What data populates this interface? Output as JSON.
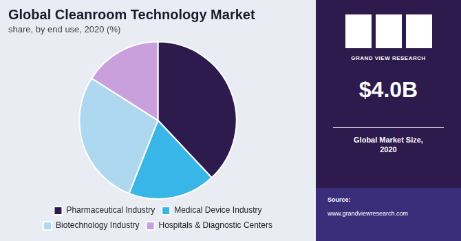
{
  "chart_data": {
    "type": "pie",
    "title": "Global Cleanroom Technology Market",
    "subtitle": "share, by end use, 2020 (%)",
    "categories": [
      "Pharmaceutical Industry",
      "Medical Device Industry",
      "Biotechnology Industry",
      "Hospitals & Diagnostic Centers"
    ],
    "values": [
      38,
      18,
      28,
      16
    ],
    "colors": [
      "#2d1b4e",
      "#38b6e8",
      "#add8f0",
      "#c9a0dc"
    ],
    "legend": "bottom",
    "annotations": [
      "GRAND VIEW RESEARCH",
      "$4.0B",
      "Global Market Size,\n2020",
      "Source:",
      "www.grandviewresearch.com"
    ]
  }
}
